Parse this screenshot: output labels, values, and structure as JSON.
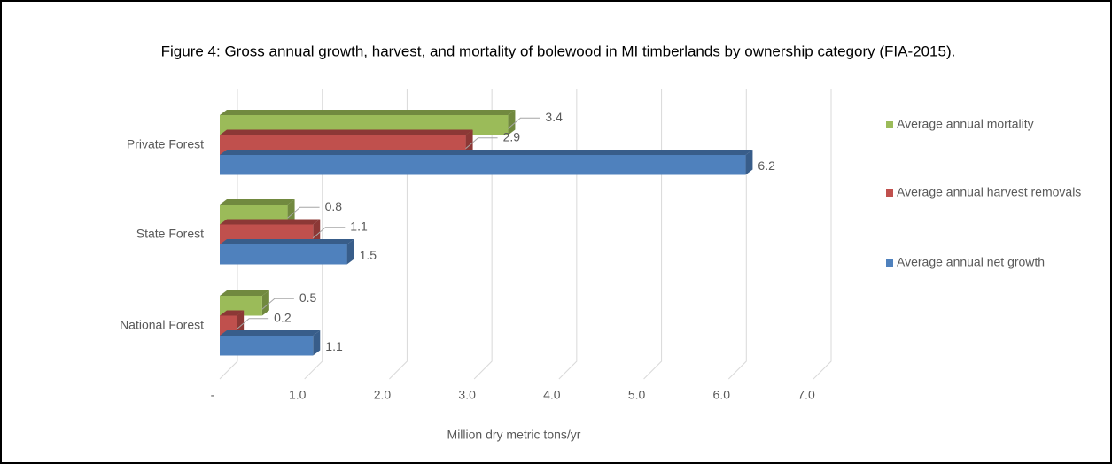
{
  "chart_data": {
    "type": "bar3d_horizontal",
    "title": "Figure 4: Gross annual growth, harvest, and mortality of bolewood in MI timberlands by ownership category (FIA-2015).",
    "x_label": "Million dry metric tons/yr",
    "categories": [
      "Private Forest",
      "State Forest",
      "National Forest"
    ],
    "series": [
      {
        "name": "Average annual mortality",
        "color": "#9bbb59",
        "values": [
          3.4,
          0.8,
          0.5
        ]
      },
      {
        "name": "Average annual harvest removals",
        "color": "#c0504d",
        "values": [
          2.9,
          1.1,
          0.2
        ]
      },
      {
        "name": "Average annual net growth",
        "color": "#4f81bd",
        "values": [
          6.2,
          1.5,
          1.1
        ]
      }
    ],
    "xlim": [
      0,
      7
    ],
    "xticks": [
      {
        "value": 0,
        "label": "-"
      },
      {
        "value": 1,
        "label": "1.0"
      },
      {
        "value": 2,
        "label": "2.0"
      },
      {
        "value": 3,
        "label": "3.0"
      },
      {
        "value": 4,
        "label": "4.0"
      },
      {
        "value": 5,
        "label": "5.0"
      },
      {
        "value": 6,
        "label": "6.0"
      },
      {
        "value": 7,
        "label": "7.0"
      }
    ],
    "grid": true,
    "legend": "right"
  }
}
